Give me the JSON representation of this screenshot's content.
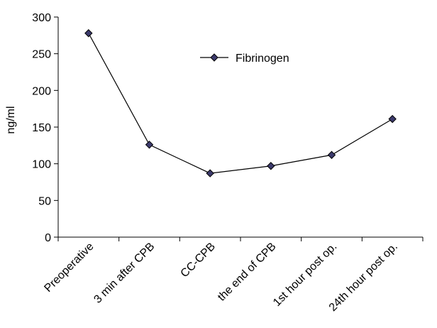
{
  "chart_data": {
    "type": "line",
    "categories": [
      "Preoperative",
      "3 min after CPB",
      "CC-CPB",
      "the end of CPB",
      "1st hour post op.",
      "24th hour post op."
    ],
    "series": [
      {
        "name": "Fibrinogen",
        "values": [
          278,
          126,
          87,
          97,
          112,
          161
        ]
      }
    ],
    "ylabel": "ng/ml",
    "xlabel": "",
    "ylim": [
      0,
      300
    ],
    "yticks": [
      0,
      50,
      100,
      150,
      200,
      250,
      300
    ],
    "grid": false,
    "legend_position": "top-center",
    "colors": {
      "line": "#000000",
      "marker": "#3c3a6c",
      "marker_stroke": "#000000"
    }
  }
}
